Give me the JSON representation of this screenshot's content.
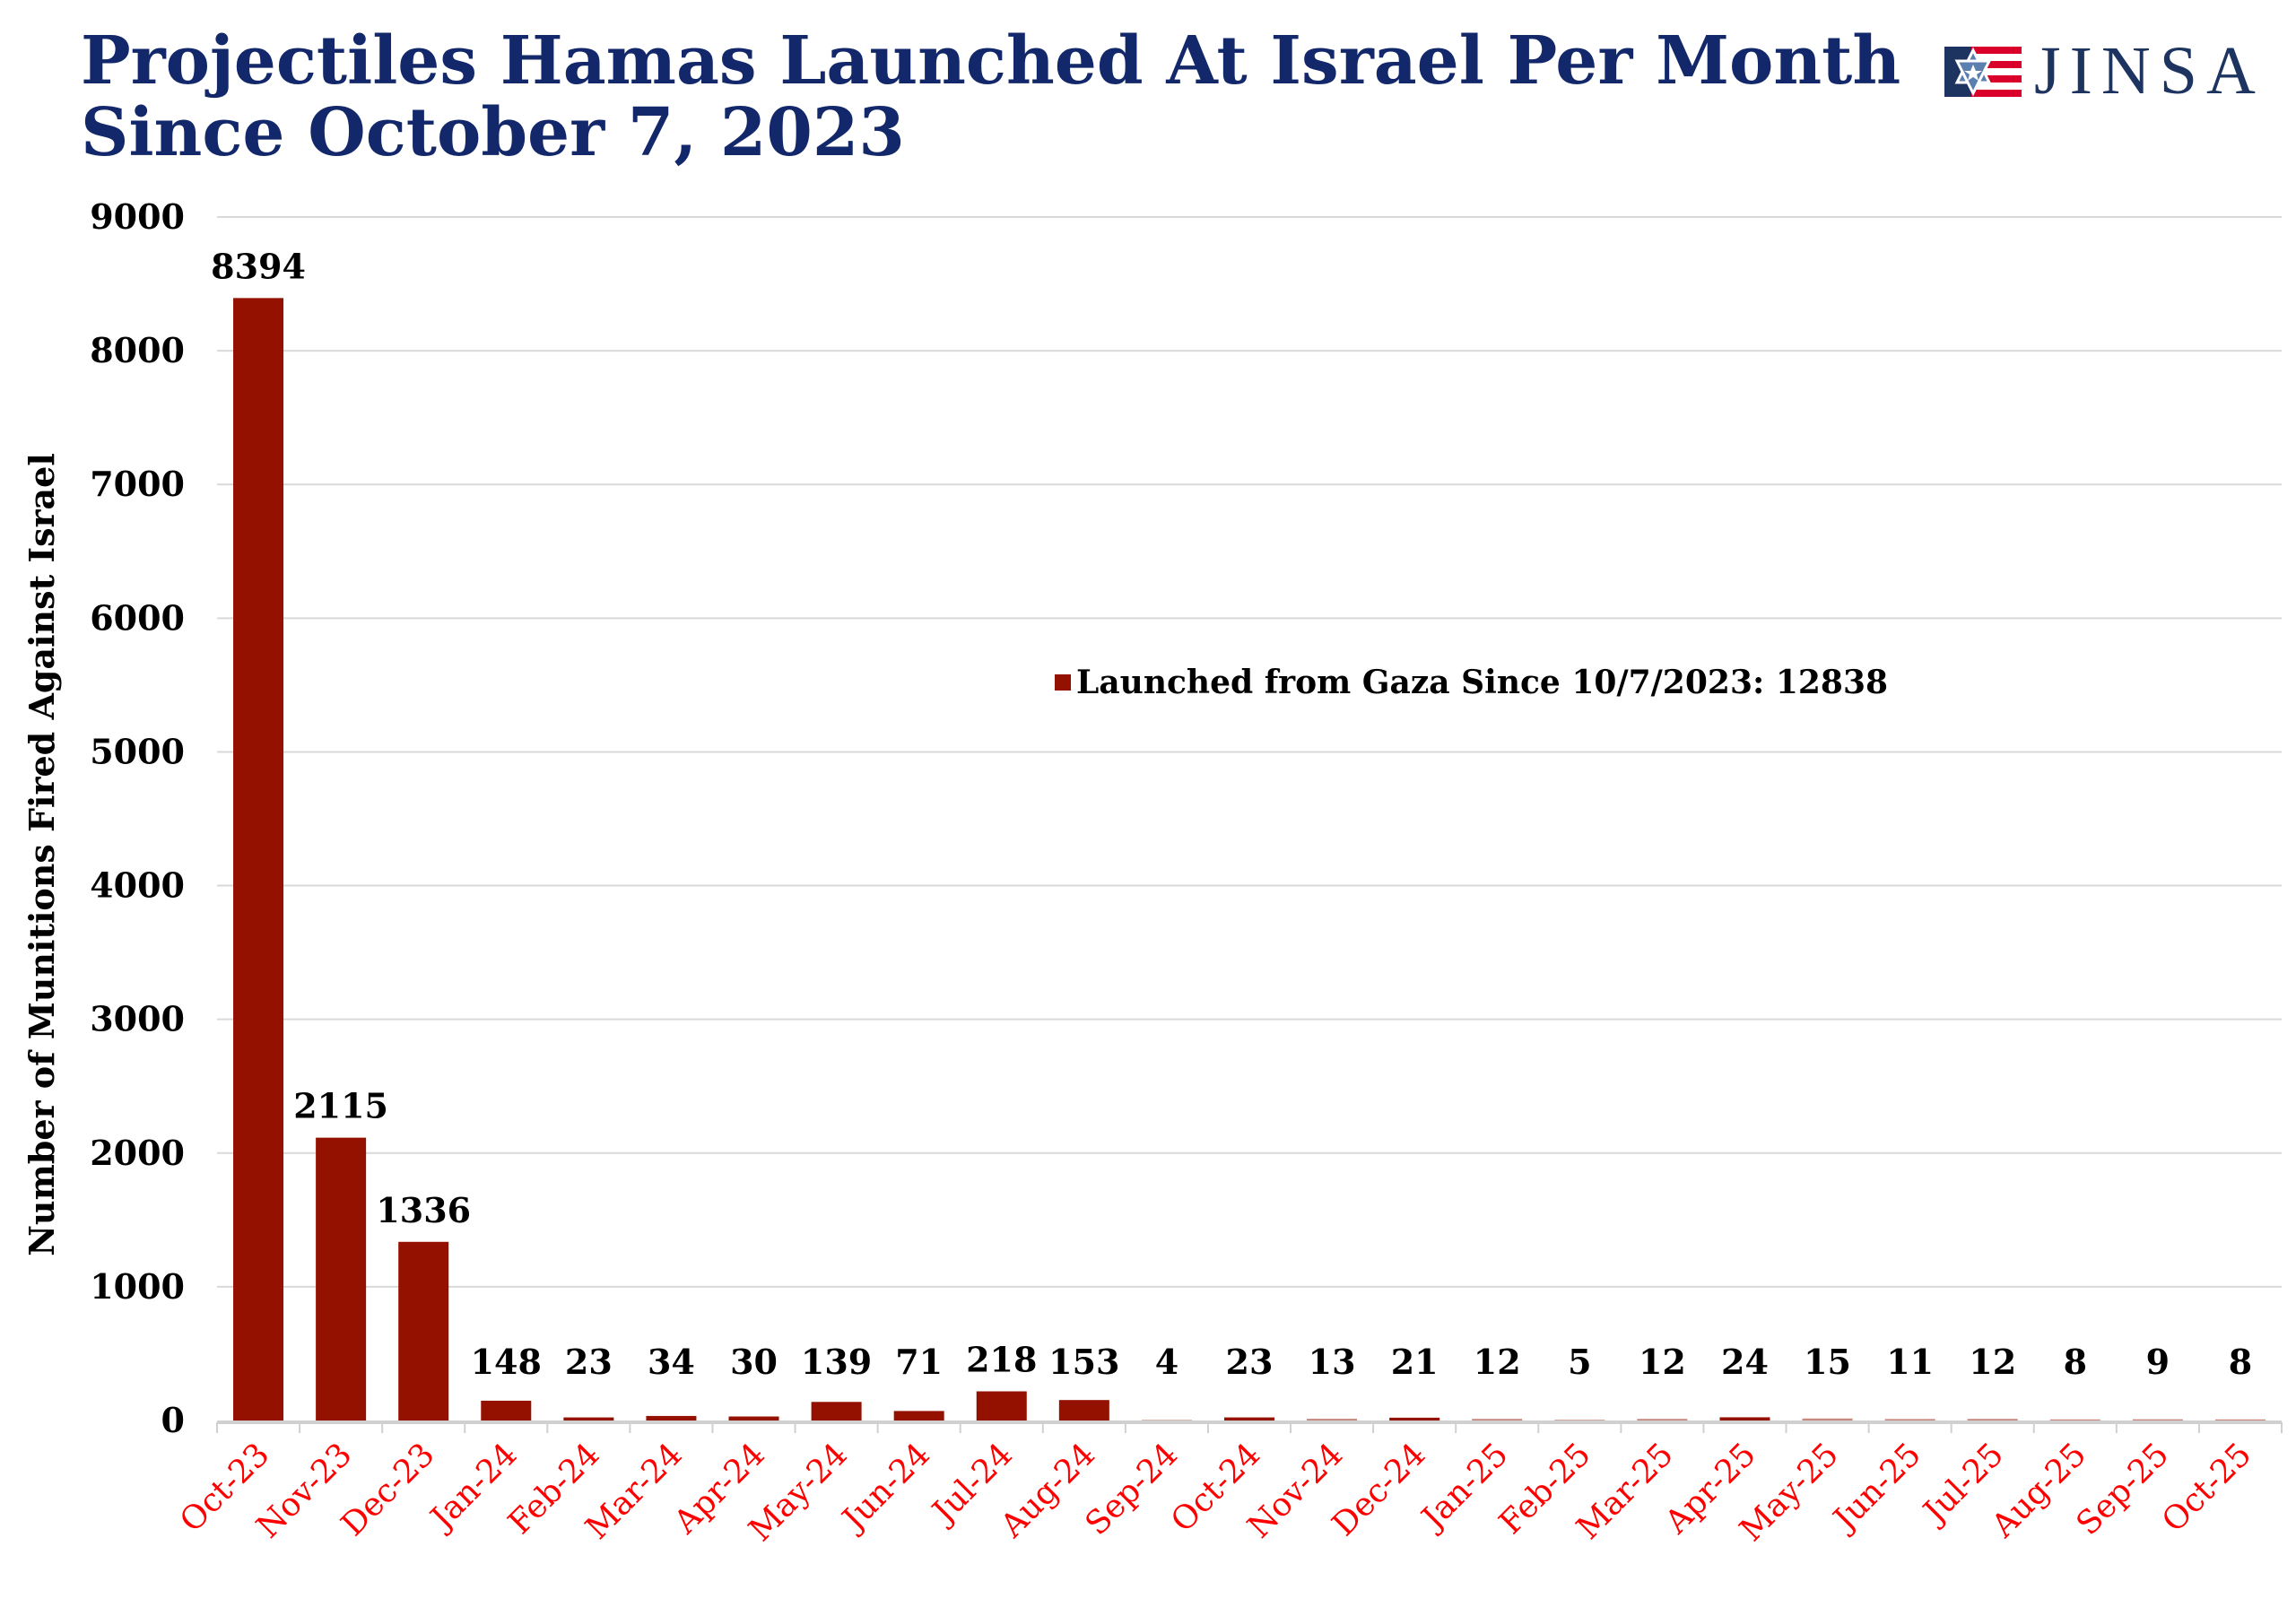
{
  "title_line1": "Projectiles Hamas Launched At Israel Per Month",
  "title_line2": "Since October 7, 2023",
  "logo": {
    "text": "JINSA"
  },
  "colors": {
    "bar": "#941100",
    "title": "#13286b",
    "xtick": "#ff0000",
    "grid": "#d9d9d9"
  },
  "chart_data": {
    "type": "bar",
    "title": "Projectiles Hamas Launched At Israel Per Month Since October 7, 2023",
    "xlabel": "",
    "ylabel": "Number of Munitions Fired Against Israel",
    "ylim": [
      0,
      9000
    ],
    "yticks": [
      0,
      1000,
      2000,
      3000,
      4000,
      5000,
      6000,
      7000,
      8000,
      9000
    ],
    "grid": true,
    "legend": {
      "label": "Launched from Gaza Since 10/7/2023: 12838",
      "placement": "center"
    },
    "categories": [
      "Oct-23",
      "Nov-23",
      "Dec-23",
      "Jan-24",
      "Feb-24",
      "Mar-24",
      "Apr-24",
      "May-24",
      "Jun-24",
      "Jul-24",
      "Aug-24",
      "Sep-24",
      "Oct-24",
      "Nov-24",
      "Dec-24",
      "Jan-25",
      "Feb-25",
      "Mar-25",
      "Apr-25",
      "May-25",
      "Jun-25",
      "Jul-25",
      "Aug-25",
      "Sep-25",
      "Oct-25"
    ],
    "values": [
      8394,
      2115,
      1336,
      148,
      23,
      34,
      30,
      139,
      71,
      218,
      153,
      4,
      23,
      13,
      21,
      12,
      5,
      12,
      24,
      15,
      11,
      12,
      8,
      9,
      8
    ]
  }
}
